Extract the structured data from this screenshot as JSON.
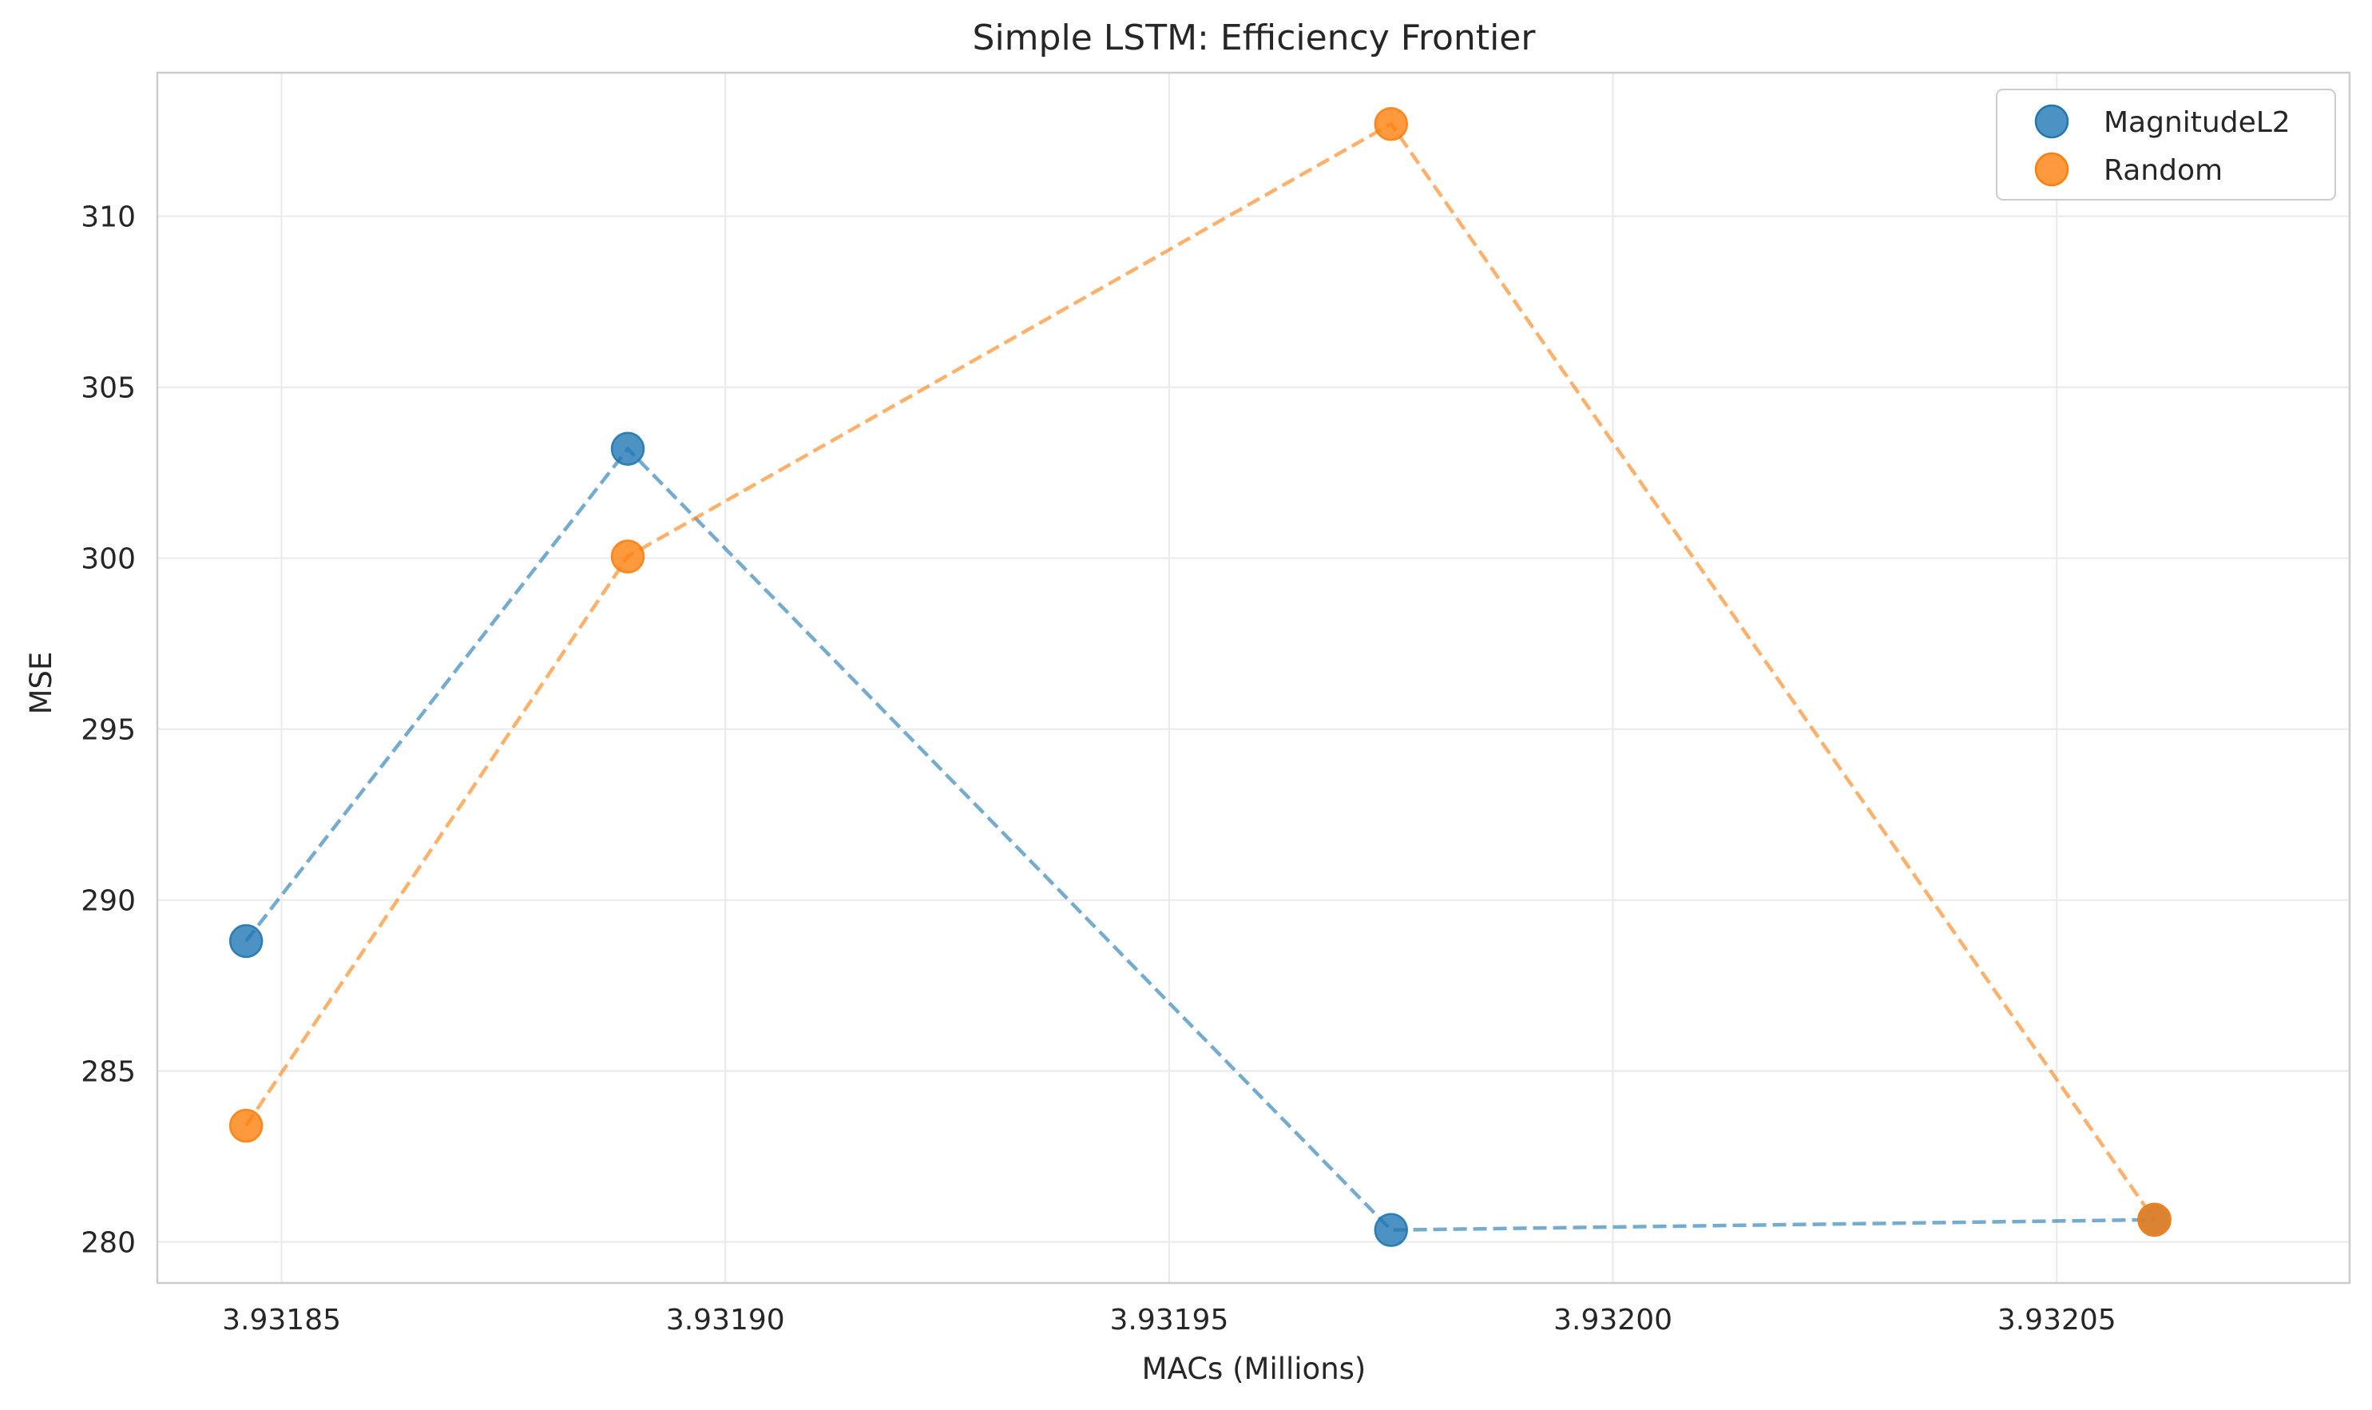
{
  "chart_data": {
    "type": "scatter",
    "title": "Simple LSTM: Efficiency Frontier",
    "xlabel": "MACs (Millions)",
    "ylabel": "MSE",
    "xlim": [
      3.931836,
      3.932083
    ],
    "ylim": [
      278.8,
      314.2
    ],
    "xticks": [
      3.93185,
      3.9319,
      3.93195,
      3.932,
      3.93205
    ],
    "xtick_labels": [
      "3.93185",
      "3.93190",
      "3.93195",
      "3.93200",
      "3.93205"
    ],
    "yticks": [
      280,
      285,
      290,
      295,
      300,
      305,
      310
    ],
    "ytick_labels": [
      "280",
      "285",
      "290",
      "295",
      "300",
      "305",
      "310"
    ],
    "grid": true,
    "legend_position": "top-right",
    "series": [
      {
        "name": "MagnitudeL2",
        "color": "#1f77b4",
        "line_style": "dashed",
        "points": [
          {
            "x": 3.931846,
            "y": 288.8
          },
          {
            "x": 3.931889,
            "y": 303.2
          },
          {
            "x": 3.931975,
            "y": 280.35
          },
          {
            "x": 3.932061,
            "y": 280.65
          }
        ]
      },
      {
        "name": "Random",
        "color": "#ff7f0e",
        "line_style": "dashed",
        "points": [
          {
            "x": 3.931846,
            "y": 283.4
          },
          {
            "x": 3.931889,
            "y": 300.05
          },
          {
            "x": 3.931975,
            "y": 312.7
          },
          {
            "x": 3.932061,
            "y": 280.65
          }
        ]
      }
    ]
  }
}
